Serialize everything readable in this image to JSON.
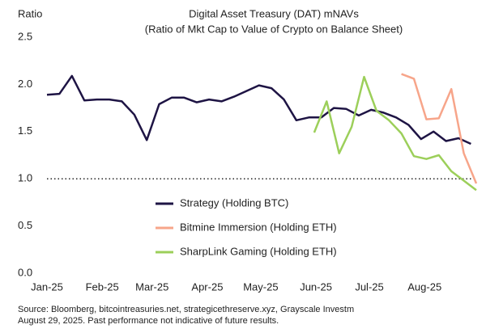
{
  "chart_data": {
    "type": "line",
    "title": "Digital Asset Treasury (DAT) mNAVs",
    "subtitle": "(Ratio of Mkt Cap to Value of Crypto on Balance Sheet)",
    "y_axis_label": "Ratio",
    "source": [
      "Source: Bloomberg, bitcointreasuries.net, strategicethreserve.xyz, Grayscale Investm",
      "August 29, 2025. Past performance not indicative of future results."
    ],
    "xlim": [
      0,
      241
    ],
    "xticks": [
      {
        "value": 0,
        "label": "Jan-25"
      },
      {
        "value": 31,
        "label": "Feb-25"
      },
      {
        "value": 59,
        "label": "Mar-25"
      },
      {
        "value": 90,
        "label": "Apr-25"
      },
      {
        "value": 120,
        "label": "May-25"
      },
      {
        "value": 151,
        "label": "Jun-25"
      },
      {
        "value": 181,
        "label": "Jul-25"
      },
      {
        "value": 212,
        "label": "Aug-25"
      }
    ],
    "ylim": [
      0,
      2.5
    ],
    "yticks": [
      {
        "value": 0,
        "label": "0.0"
      },
      0.5,
      {
        "value": 1,
        "label": "1.0"
      },
      1.5,
      {
        "value": 2,
        "label": "2.0"
      },
      2.5
    ],
    "reference_line": 1,
    "series": [
      {
        "name": "Strategy (Holding BTC)",
        "color": "#1e1444",
        "x": [
          0,
          7,
          14,
          21,
          28,
          35,
          42,
          49,
          56,
          63,
          70,
          77,
          84,
          91,
          98,
          105,
          112,
          119,
          126,
          133,
          140,
          147,
          154,
          161,
          168,
          175,
          182,
          189,
          196,
          203,
          210,
          217,
          224,
          231,
          238
        ],
        "values": [
          1.89,
          1.9,
          2.09,
          1.83,
          1.84,
          1.84,
          1.82,
          1.68,
          1.41,
          1.79,
          1.86,
          1.86,
          1.81,
          1.84,
          1.82,
          1.87,
          1.93,
          1.99,
          1.96,
          1.84,
          1.62,
          1.65,
          1.65,
          1.75,
          1.74,
          1.67,
          1.73,
          1.7,
          1.65,
          1.57,
          1.42,
          1.5,
          1.4,
          1.43,
          1.37
        ]
      },
      {
        "name": "Bitmine Immersion (Holding ETH)",
        "color": "#f7a58a",
        "x": [
          199,
          206,
          213,
          220,
          227,
          234,
          241
        ],
        "values": [
          2.11,
          2.06,
          1.63,
          1.64,
          1.95,
          1.27,
          0.95
        ]
      },
      {
        "name": "SharpLink Gaming (Holding ETH)",
        "color": "#9ccf5a",
        "x": [
          150,
          157,
          164,
          171,
          178,
          185,
          192,
          199,
          206,
          213,
          220,
          227,
          234,
          241
        ],
        "values": [
          1.49,
          1.82,
          1.27,
          1.55,
          2.08,
          1.72,
          1.62,
          1.48,
          1.24,
          1.21,
          1.25,
          1.08,
          0.98,
          0.88
        ]
      }
    ]
  }
}
